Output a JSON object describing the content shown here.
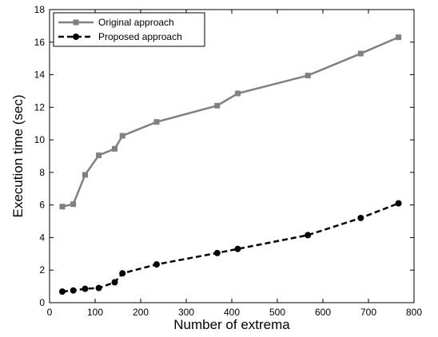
{
  "chart_data": {
    "type": "line",
    "title": "",
    "xlabel": "Number of extrema",
    "ylabel": "Execution time (sec)",
    "xlim": [
      0,
      800
    ],
    "ylim": [
      0,
      18
    ],
    "xticks": [
      0,
      100,
      200,
      300,
      400,
      500,
      600,
      700,
      800
    ],
    "yticks": [
      0,
      2,
      4,
      6,
      8,
      10,
      12,
      14,
      16,
      18
    ],
    "grid": false,
    "legend_position": "top-left",
    "series": [
      {
        "name": "Original approach",
        "color": "#808080",
        "line_style": "solid",
        "marker": "square",
        "x": [
          28,
          52,
          78,
          108,
          143,
          160,
          235,
          368,
          413,
          567,
          683,
          766
        ],
        "y": [
          5.9,
          6.05,
          7.85,
          9.05,
          9.45,
          10.25,
          11.1,
          12.1,
          12.85,
          13.95,
          15.3,
          16.3
        ]
      },
      {
        "name": "Proposed approach",
        "color": "#000000",
        "line_style": "dashed",
        "marker": "circle",
        "x": [
          28,
          52,
          78,
          108,
          143,
          160,
          235,
          368,
          413,
          567,
          683,
          766
        ],
        "y": [
          0.68,
          0.75,
          0.85,
          0.9,
          1.25,
          1.8,
          2.35,
          3.05,
          3.3,
          4.15,
          5.2,
          6.1
        ]
      }
    ]
  }
}
